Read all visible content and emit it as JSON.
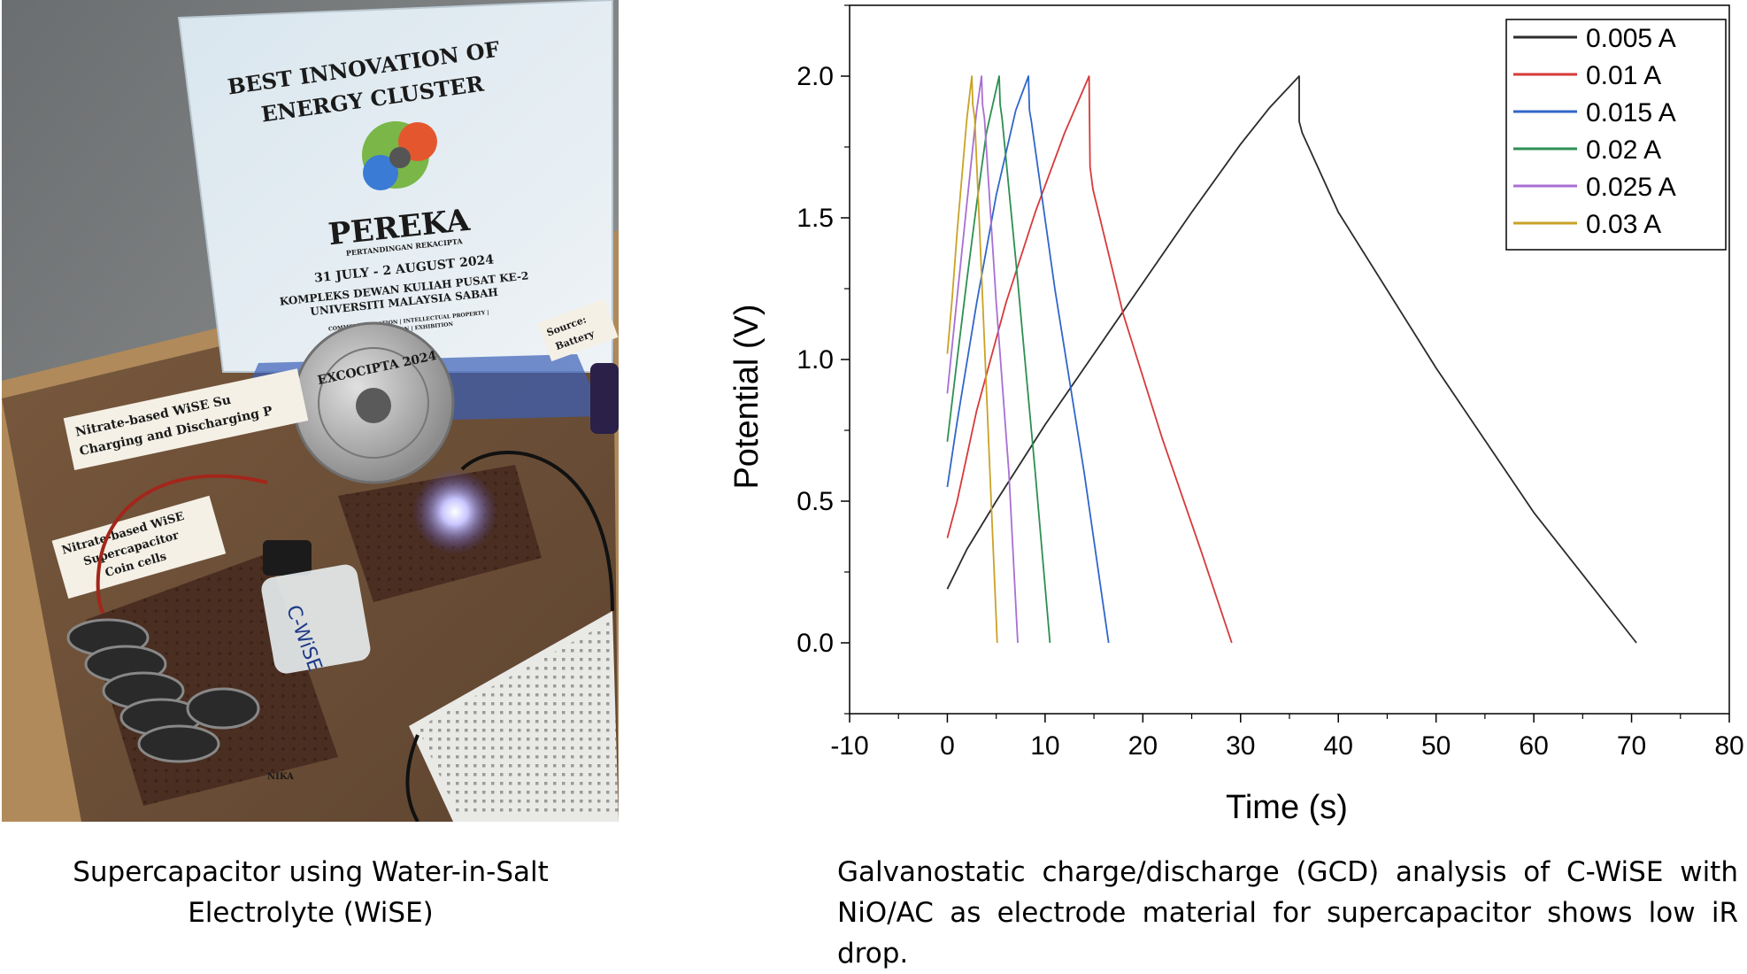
{
  "photo": {
    "trophy_title_line1": "BEST INNOVATION OF",
    "trophy_title_line2": "ENERGY CLUSTER",
    "trophy_brand": "PEREKA",
    "trophy_brand_sub": "PERTANDINGAN REKACIPTA",
    "trophy_dates": "31 JULY - 2 AUGUST 2024",
    "trophy_venue_line1": "KOMPLEKS DEWAN KULIAH PUSAT KE-2",
    "trophy_venue_line2": "UNIVERSITI MALAYSIA SABAH",
    "trophy_small_line1": "COMMERCIALISATION | INTELLECTUAL PROPERTY |",
    "trophy_small_line2": "COMPETITION | EXHIBITION",
    "medal_text": "EXCOCIPTA 2024",
    "label_charging_line1": "Nitrate-based WiSE Su",
    "label_charging_line2": "Charging and Discharging P",
    "label_coin_line1": "Nitrate-based WiSE",
    "label_coin_line2": "Supercapacitor",
    "label_coin_line3": "Coin cells",
    "label_source_line1": "Source:",
    "label_source_line2": "Battery",
    "vial_label": "C-WiSE",
    "board_mark": "NIKA"
  },
  "captions": {
    "left_line1": "Supercapacitor using Water-in-Salt",
    "left_line2": "Electrolyte (WiSE)",
    "right_line1": "Galvanostatic charge/discharge (GCD) analysis of C-WiSE with",
    "right_line2": "NiO/AC as electrode material for supercapacitor shows low iR drop."
  },
  "chart_data": {
    "type": "line",
    "title": "",
    "xlabel": "Time (s)",
    "ylabel": "Potential (V)",
    "xlim": [
      -10,
      80
    ],
    "ylim": [
      -0.25,
      2.25
    ],
    "xticks": [
      -10,
      0,
      10,
      20,
      30,
      40,
      50,
      60,
      70,
      80
    ],
    "xtick_labels": [
      "-10",
      "0",
      "10",
      "20",
      "30",
      "40",
      "50",
      "60",
      "70",
      "80"
    ],
    "yticks": [
      0.0,
      0.5,
      1.0,
      1.5,
      2.0
    ],
    "ytick_labels": [
      "0.0",
      "0.5",
      "1.0",
      "1.5",
      "2.0"
    ],
    "legend_position": "top-right",
    "series": [
      {
        "name": "0.005 A",
        "color": "#2b2b2b",
        "x": [
          0,
          2,
          5,
          10,
          15,
          20,
          25,
          30,
          33,
          36,
          36,
          36.3,
          40,
          50,
          60,
          70.5
        ],
        "y": [
          0.19,
          0.33,
          0.5,
          0.77,
          1.02,
          1.27,
          1.52,
          1.76,
          1.89,
          2.0,
          1.84,
          1.8,
          1.52,
          0.97,
          0.46,
          0.0
        ]
      },
      {
        "name": "0.01 A",
        "color": "#d63a3a",
        "x": [
          0,
          1,
          3,
          6,
          9,
          12,
          14.5,
          14.6,
          14.9,
          18,
          22,
          26,
          29.1
        ],
        "y": [
          0.37,
          0.5,
          0.82,
          1.2,
          1.52,
          1.8,
          2.0,
          1.68,
          1.6,
          1.16,
          0.72,
          0.32,
          0.0
        ]
      },
      {
        "name": "0.015 A",
        "color": "#3066c8",
        "x": [
          0,
          1,
          3,
          5,
          7,
          8.3,
          8.4,
          8.6,
          11,
          14,
          16.5
        ],
        "y": [
          0.55,
          0.78,
          1.2,
          1.58,
          1.88,
          2.0,
          1.88,
          1.84,
          1.25,
          0.6,
          0.0
        ]
      },
      {
        "name": "0.02 A",
        "color": "#2e8f52",
        "x": [
          0,
          1,
          2,
          3,
          4,
          5.3,
          5.4,
          5.6,
          7,
          9,
          10.5
        ],
        "y": [
          0.71,
          1.0,
          1.28,
          1.55,
          1.8,
          2.0,
          1.9,
          1.85,
          1.35,
          0.6,
          0.0
        ]
      },
      {
        "name": "0.025 A",
        "color": "#a96fd3",
        "x": [
          0,
          1,
          2,
          3,
          3.5,
          3.6,
          3.8,
          5,
          6.3,
          7.2
        ],
        "y": [
          0.88,
          1.22,
          1.55,
          1.88,
          2.0,
          1.9,
          1.85,
          1.2,
          0.6,
          0.0
        ]
      },
      {
        "name": "0.03 A",
        "color": "#c9a227",
        "x": [
          0,
          0.5,
          1,
          1.5,
          2,
          2.5,
          2.6,
          2.8,
          3.5,
          4.3,
          5.1
        ],
        "y": [
          1.02,
          1.22,
          1.45,
          1.65,
          1.85,
          2.0,
          1.9,
          1.85,
          1.3,
          0.65,
          0.0
        ]
      }
    ]
  }
}
